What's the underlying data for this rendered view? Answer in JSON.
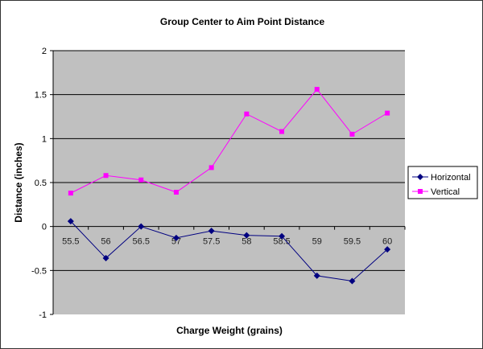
{
  "chart_data": {
    "type": "line",
    "title": "Group Center to Aim Point Distance",
    "xlabel": "Charge Weight (grains)",
    "ylabel": "Distance (inches)",
    "categories": [
      "55.5",
      "56",
      "56.5",
      "57",
      "57.5",
      "58",
      "58.5",
      "59",
      "59.5",
      "60"
    ],
    "ylim": [
      -1,
      2
    ],
    "yticks": [
      "2",
      "1.5",
      "1",
      "0.5",
      "0",
      "-0.5",
      "-1"
    ],
    "ytick_values": [
      2,
      1.5,
      1,
      0.5,
      0,
      -0.5,
      -1
    ],
    "grid": true,
    "legend": "right",
    "plot_background": "#c0c0c0",
    "series": [
      {
        "name": "Horizontal",
        "color": "#000080",
        "marker": "diamond",
        "values": [
          0.06,
          -0.36,
          0.0,
          -0.13,
          -0.05,
          -0.1,
          -0.11,
          -0.56,
          -0.62,
          -0.26
        ]
      },
      {
        "name": "Vertical",
        "color": "#ff00ff",
        "marker": "square",
        "values": [
          0.38,
          0.58,
          0.53,
          0.39,
          0.67,
          1.28,
          1.08,
          1.56,
          1.05,
          1.29
        ]
      }
    ]
  }
}
